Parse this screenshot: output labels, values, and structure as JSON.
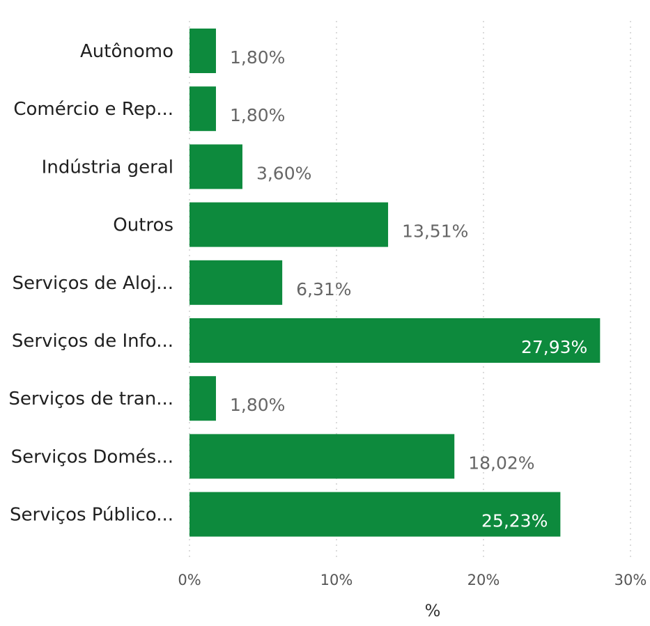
{
  "chart_data": {
    "type": "bar",
    "orientation": "horizontal",
    "categories": [
      "Autônomo",
      "Comércio e Rep...",
      "Indústria geral",
      "Outros",
      "Serviços de Aloj...",
      "Serviços de Info...",
      "Serviços de tran...",
      "Serviços Domés...",
      "Serviços Público..."
    ],
    "values": [
      1.8,
      1.8,
      3.6,
      13.51,
      6.31,
      27.93,
      1.8,
      18.02,
      25.23
    ],
    "data_labels": [
      "1,80%",
      "1,80%",
      "3,60%",
      "13,51%",
      "6,31%",
      "27,93%",
      "1,80%",
      "18,02%",
      "25,23%"
    ],
    "xlim": [
      0,
      30
    ],
    "x_ticks": [
      0,
      10,
      20,
      30
    ],
    "x_tick_labels": [
      "0%",
      "10%",
      "20%",
      "30%"
    ],
    "xlabel": "%",
    "ylabel": "",
    "title": "",
    "grid": "vertical-dotted",
    "legend": "none",
    "colors": {
      "bar": "#0d8a3d",
      "label_outside": "#666666",
      "label_inside": "#ffffff",
      "grid": "#cfcfcf"
    }
  }
}
